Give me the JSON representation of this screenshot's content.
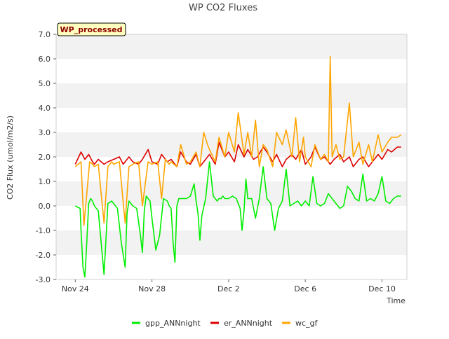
{
  "chart_data": {
    "type": "line",
    "title": "WP CO2 Fluxes",
    "badge": "WP_processed",
    "xlabel": "Time",
    "ylabel": "CO2 Flux (umol/m2/s)",
    "ylim": [
      -3.0,
      7.0
    ],
    "yticks": [
      -3.0,
      -2.0,
      -1.0,
      0.0,
      1.0,
      2.0,
      3.0,
      4.0,
      5.0,
      6.0,
      7.0
    ],
    "ytick_labels": [
      "-3.0",
      "-2.0",
      "-1.0",
      "0.0",
      "1.0",
      "2.0",
      "3.0",
      "4.0",
      "5.0",
      "6.0",
      "7.0"
    ],
    "xlim_days": [
      -1.0,
      17.3
    ],
    "xticks_days": [
      0,
      4,
      8,
      12,
      16
    ],
    "xtick_labels": [
      "Nov 24",
      "Nov 28",
      "Dec 2",
      "Dec 6",
      "Dec 10"
    ],
    "x_unit": "days since Nov 24",
    "colors": {
      "gpp_ANNnight": "#00ee00",
      "er_ANNnight": "#dd0000",
      "wc_gf": "#ffa500",
      "band": "#f2f2f2",
      "badge_bg": "#ffffc0",
      "badge_text": "#8b0000"
    },
    "series": [
      {
        "name": "gpp_ANNnight",
        "x": [
          0.0,
          0.25,
          0.3,
          0.4,
          0.5,
          0.6,
          0.7,
          0.8,
          0.9,
          1.0,
          1.2,
          1.5,
          1.7,
          1.9,
          2.0,
          2.2,
          2.4,
          2.6,
          2.7,
          2.8,
          2.9,
          3.0,
          3.2,
          3.4,
          3.5,
          3.6,
          3.7,
          3.8,
          3.9,
          4.0,
          4.2,
          4.4,
          4.6,
          4.8,
          4.9,
          5.0,
          5.1,
          5.2,
          5.3,
          5.4,
          5.6,
          5.8,
          6.0,
          6.2,
          6.3,
          6.4,
          6.5,
          6.6,
          6.8,
          7.0,
          7.2,
          7.4,
          7.5,
          7.6,
          7.7,
          7.8,
          8.0,
          8.2,
          8.4,
          8.6,
          8.7,
          8.8,
          8.9,
          9.0,
          9.2,
          9.4,
          9.6,
          9.8,
          10.0,
          10.2,
          10.4,
          10.6,
          10.8,
          11.0,
          11.2,
          11.4,
          11.6,
          11.8,
          12.0,
          12.2,
          12.4,
          12.6,
          12.8,
          13.0,
          13.2,
          13.4,
          13.6,
          13.8,
          14.0,
          14.2,
          14.4,
          14.6,
          14.8,
          15.0,
          15.2,
          15.4,
          15.6,
          15.8,
          16.0,
          16.2,
          16.4,
          16.6,
          16.8,
          17.0
        ],
        "values": [
          0.0,
          -0.1,
          -1.0,
          -2.5,
          -2.9,
          -1.5,
          0.1,
          0.3,
          0.2,
          0.0,
          -0.2,
          -2.8,
          0.1,
          0.2,
          0.1,
          -0.1,
          -1.5,
          -2.5,
          -0.3,
          0.2,
          0.1,
          0.0,
          -0.1,
          -1.2,
          -1.9,
          -0.2,
          0.4,
          0.3,
          0.2,
          -0.5,
          -1.8,
          -1.2,
          0.3,
          0.2,
          0.0,
          -0.1,
          -1.5,
          -2.3,
          0.0,
          0.3,
          0.3,
          0.3,
          0.4,
          0.9,
          0.2,
          -0.3,
          -1.4,
          -0.4,
          0.3,
          1.8,
          0.4,
          0.2,
          0.3,
          0.3,
          0.4,
          0.3,
          0.3,
          0.4,
          0.3,
          -0.1,
          -1.0,
          -0.2,
          1.1,
          0.3,
          0.3,
          -0.5,
          0.3,
          1.6,
          0.3,
          0.1,
          -1.0,
          -0.1,
          0.2,
          1.5,
          0.0,
          0.1,
          0.2,
          0.0,
          0.2,
          0.0,
          1.2,
          0.1,
          0.0,
          0.1,
          0.5,
          0.3,
          0.1,
          -0.1,
          0.0,
          0.8,
          0.6,
          0.3,
          0.2,
          1.3,
          0.2,
          0.3,
          0.2,
          0.5,
          1.2,
          0.2,
          0.1,
          0.3,
          0.4,
          0.4
        ],
        "__comment": "gpp values are approximate readings from the plotted line"
      },
      {
        "name": "er_ANNnight",
        "x": [
          0.0,
          0.3,
          0.5,
          0.7,
          0.9,
          1.0,
          1.2,
          1.5,
          1.7,
          2.0,
          2.3,
          2.5,
          2.8,
          3.0,
          3.3,
          3.5,
          3.8,
          4.0,
          4.3,
          4.5,
          4.8,
          5.0,
          5.3,
          5.5,
          5.8,
          6.0,
          6.3,
          6.5,
          6.8,
          7.0,
          7.3,
          7.5,
          7.8,
          8.0,
          8.3,
          8.5,
          8.8,
          9.0,
          9.3,
          9.5,
          9.8,
          10.0,
          10.3,
          10.5,
          10.8,
          11.0,
          11.3,
          11.5,
          11.8,
          12.0,
          12.3,
          12.5,
          12.8,
          13.0,
          13.3,
          13.5,
          13.8,
          14.0,
          14.3,
          14.5,
          14.8,
          15.0,
          15.3,
          15.5,
          15.8,
          16.0,
          16.3,
          16.5,
          16.8,
          17.0
        ],
        "values": [
          1.7,
          2.2,
          1.9,
          2.1,
          1.8,
          1.7,
          1.9,
          1.7,
          1.8,
          1.9,
          2.0,
          1.7,
          2.0,
          1.8,
          1.7,
          1.9,
          2.3,
          1.8,
          1.7,
          2.1,
          1.8,
          1.9,
          1.6,
          2.2,
          1.8,
          1.7,
          2.1,
          1.6,
          1.9,
          2.1,
          1.7,
          2.6,
          2.0,
          2.2,
          1.8,
          2.5,
          2.0,
          2.3,
          1.9,
          2.0,
          2.4,
          2.2,
          1.8,
          2.1,
          1.6,
          1.9,
          2.1,
          1.9,
          2.3,
          1.7,
          2.0,
          2.4,
          1.9,
          2.0,
          1.7,
          1.9,
          2.1,
          1.8,
          2.0,
          1.6,
          1.9,
          2.0,
          1.6,
          1.8,
          2.1,
          1.9,
          2.3,
          2.2,
          2.4,
          2.4
        ]
      },
      {
        "name": "wc_gf",
        "x": [
          0.0,
          0.3,
          0.45,
          0.6,
          0.75,
          0.9,
          1.0,
          1.2,
          1.5,
          1.7,
          1.9,
          2.0,
          2.3,
          2.6,
          2.8,
          3.0,
          3.3,
          3.5,
          3.8,
          4.0,
          4.3,
          4.5,
          4.7,
          4.9,
          5.0,
          5.3,
          5.5,
          5.8,
          6.0,
          6.3,
          6.5,
          6.7,
          6.9,
          7.0,
          7.3,
          7.5,
          7.8,
          8.0,
          8.3,
          8.5,
          8.8,
          9.0,
          9.2,
          9.4,
          9.6,
          9.8,
          10.0,
          10.3,
          10.5,
          10.8,
          11.0,
          11.3,
          11.5,
          11.7,
          11.9,
          12.0,
          12.3,
          12.5,
          12.8,
          13.0,
          13.2,
          13.3,
          13.4,
          13.6,
          13.8,
          14.0,
          14.3,
          14.5,
          14.8,
          15.0,
          15.3,
          15.5,
          15.8,
          16.0,
          16.3,
          16.5,
          16.8,
          17.0
        ],
        "values": [
          1.6,
          1.8,
          -0.8,
          0.5,
          1.8,
          1.7,
          1.6,
          1.7,
          -0.7,
          1.6,
          1.8,
          1.7,
          1.8,
          -0.7,
          1.6,
          1.7,
          1.8,
          0.0,
          1.8,
          1.7,
          1.8,
          0.3,
          1.9,
          1.7,
          1.8,
          1.6,
          2.5,
          1.7,
          1.8,
          2.2,
          1.6,
          3.0,
          2.5,
          2.3,
          1.8,
          2.8,
          2.0,
          3.0,
          2.2,
          3.8,
          2.1,
          3.0,
          2.0,
          3.5,
          1.6,
          2.5,
          2.3,
          1.6,
          3.0,
          2.5,
          3.1,
          2.0,
          3.6,
          1.8,
          2.8,
          2.0,
          1.6,
          2.5,
          1.9,
          2.1,
          1.8,
          6.1,
          2.0,
          2.5,
          1.9,
          2.0,
          4.2,
          2.0,
          2.6,
          1.7,
          2.5,
          1.8,
          2.9,
          2.2,
          2.6,
          2.8,
          2.8,
          2.9
        ]
      }
    ],
    "legend": [
      "gpp_ANNnight",
      "er_ANNnight",
      "wc_gf"
    ],
    "legend_position": "bottom"
  }
}
